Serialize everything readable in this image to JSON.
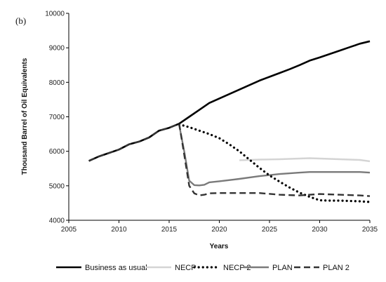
{
  "chart_data": {
    "type": "line",
    "panel_label": "(b)",
    "xlabel": "Years",
    "ylabel": "Thousand Barrel of Oil Equivalents",
    "xlim": [
      2005,
      2035
    ],
    "ylim": [
      4000,
      10000
    ],
    "x_ticks": [
      2005,
      2010,
      2015,
      2020,
      2025,
      2030,
      2035
    ],
    "y_ticks": [
      4000,
      5000,
      6000,
      7000,
      8000,
      9000,
      10000
    ],
    "grid": false,
    "legend_position": "bottom",
    "series": [
      {
        "name": "Business as usual",
        "color": "#000000",
        "style": "solid",
        "points": [
          [
            2007,
            5720
          ],
          [
            2008,
            5850
          ],
          [
            2009,
            5950
          ],
          [
            2010,
            6050
          ],
          [
            2011,
            6200
          ],
          [
            2012,
            6280
          ],
          [
            2013,
            6400
          ],
          [
            2014,
            6600
          ],
          [
            2015,
            6680
          ],
          [
            2016,
            6800
          ],
          [
            2017,
            7000
          ],
          [
            2018,
            7200
          ],
          [
            2019,
            7400
          ],
          [
            2020,
            7530
          ],
          [
            2021,
            7660
          ],
          [
            2022,
            7790
          ],
          [
            2023,
            7920
          ],
          [
            2024,
            8050
          ],
          [
            2025,
            8160
          ],
          [
            2026,
            8270
          ],
          [
            2027,
            8380
          ],
          [
            2028,
            8500
          ],
          [
            2029,
            8630
          ],
          [
            2030,
            8720
          ],
          [
            2031,
            8820
          ],
          [
            2032,
            8920
          ],
          [
            2033,
            9020
          ],
          [
            2034,
            9120
          ],
          [
            2035,
            9190
          ]
        ]
      },
      {
        "name": "NECP",
        "color": "#d4d4d4",
        "style": "solid",
        "points": [
          [
            2022,
            5740
          ],
          [
            2024,
            5760
          ],
          [
            2026,
            5770
          ],
          [
            2028,
            5790
          ],
          [
            2029,
            5800
          ],
          [
            2030,
            5790
          ],
          [
            2032,
            5770
          ],
          [
            2034,
            5750
          ],
          [
            2035,
            5710
          ]
        ]
      },
      {
        "name": "NECP 2",
        "color": "#000000",
        "style": "dotted",
        "points": [
          [
            2016,
            6780
          ],
          [
            2017,
            6700
          ],
          [
            2018,
            6600
          ],
          [
            2019,
            6500
          ],
          [
            2020,
            6380
          ],
          [
            2021,
            6200
          ],
          [
            2022,
            6000
          ],
          [
            2023,
            5760
          ],
          [
            2024,
            5520
          ],
          [
            2025,
            5300
          ],
          [
            2026,
            5120
          ],
          [
            2027,
            4950
          ],
          [
            2028,
            4800
          ],
          [
            2029,
            4680
          ],
          [
            2030,
            4580
          ],
          [
            2031,
            4570
          ],
          [
            2032,
            4570
          ],
          [
            2033,
            4560
          ],
          [
            2034,
            4550
          ],
          [
            2035,
            4530
          ]
        ]
      },
      {
        "name": "PLAN",
        "color": "#7a7a7a",
        "style": "solid",
        "points": [
          [
            2016,
            6760
          ],
          [
            2016.5,
            6000
          ],
          [
            2017,
            5150
          ],
          [
            2017.5,
            5020
          ],
          [
            2018,
            5010
          ],
          [
            2018.5,
            5030
          ],
          [
            2019,
            5100
          ],
          [
            2020,
            5130
          ],
          [
            2022,
            5200
          ],
          [
            2024,
            5280
          ],
          [
            2026,
            5340
          ],
          [
            2028,
            5380
          ],
          [
            2029,
            5400
          ],
          [
            2030,
            5400
          ],
          [
            2032,
            5400
          ],
          [
            2034,
            5400
          ],
          [
            2035,
            5380
          ]
        ]
      },
      {
        "name": "PLAN 2",
        "color": "#333333",
        "style": "dashed",
        "points": [
          [
            2007,
            5720
          ],
          [
            2008,
            5850
          ],
          [
            2009,
            5950
          ],
          [
            2010,
            6050
          ],
          [
            2011,
            6200
          ],
          [
            2012,
            6280
          ],
          [
            2013,
            6400
          ],
          [
            2014,
            6600
          ],
          [
            2015,
            6680
          ],
          [
            2016,
            6800
          ],
          [
            2016.5,
            5900
          ],
          [
            2017,
            5000
          ],
          [
            2017.5,
            4780
          ],
          [
            2018,
            4720
          ],
          [
            2018.5,
            4740
          ],
          [
            2019,
            4780
          ],
          [
            2020,
            4790
          ],
          [
            2022,
            4790
          ],
          [
            2024,
            4790
          ],
          [
            2026,
            4740
          ],
          [
            2028,
            4720
          ],
          [
            2029,
            4740
          ],
          [
            2030,
            4760
          ],
          [
            2032,
            4740
          ],
          [
            2034,
            4720
          ],
          [
            2035,
            4700
          ]
        ]
      }
    ]
  }
}
